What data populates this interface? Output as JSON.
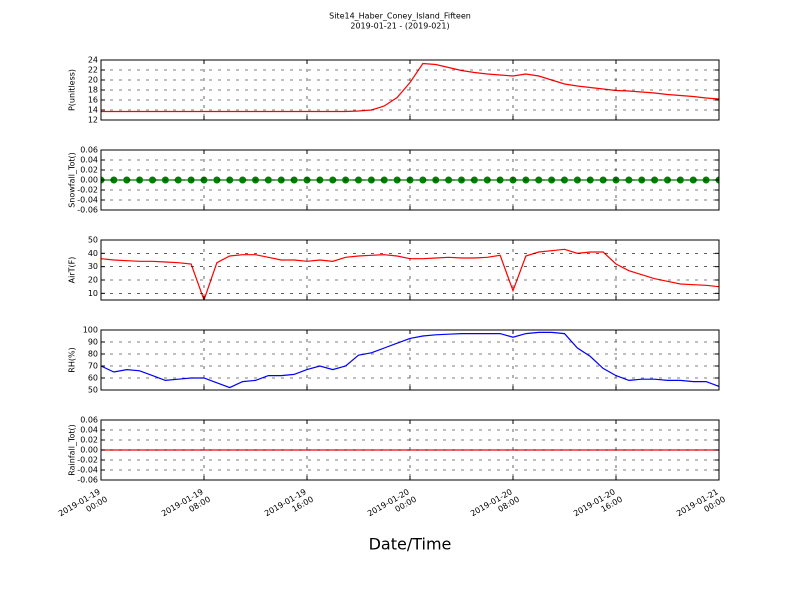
{
  "title": "Site14_Haber_Coney_Island_Fifteen",
  "subtitle": "2019-01-21 - (2019-021)",
  "xlabel": "Date/Time",
  "chart_data": [
    {
      "type": "line",
      "ylabel": "P(unitless)",
      "marker": false,
      "x": [
        "2019-01-19 00:00",
        "2019-01-19 01:00",
        "2019-01-19 02:00",
        "2019-01-19 03:00",
        "2019-01-19 04:00",
        "2019-01-19 05:00",
        "2019-01-19 06:00",
        "2019-01-19 07:00",
        "2019-01-19 08:00",
        "2019-01-19 09:00",
        "2019-01-19 10:00",
        "2019-01-19 11:00",
        "2019-01-19 12:00",
        "2019-01-19 13:00",
        "2019-01-19 14:00",
        "2019-01-19 15:00",
        "2019-01-19 16:00",
        "2019-01-19 17:00",
        "2019-01-19 18:00",
        "2019-01-19 19:00",
        "2019-01-19 20:00",
        "2019-01-19 21:00",
        "2019-01-19 22:00",
        "2019-01-19 23:00",
        "2019-01-20 00:00",
        "2019-01-20 01:00",
        "2019-01-20 02:00",
        "2019-01-20 03:00",
        "2019-01-20 04:00",
        "2019-01-20 05:00",
        "2019-01-20 06:00",
        "2019-01-20 07:00",
        "2019-01-20 08:00",
        "2019-01-20 09:00",
        "2019-01-20 10:00",
        "2019-01-20 11:00",
        "2019-01-20 12:00",
        "2019-01-20 13:00",
        "2019-01-20 14:00",
        "2019-01-20 15:00",
        "2019-01-20 16:00",
        "2019-01-20 17:00",
        "2019-01-20 18:00",
        "2019-01-20 19:00",
        "2019-01-20 20:00",
        "2019-01-20 21:00",
        "2019-01-20 22:00",
        "2019-01-20 23:00",
        "2019-01-21 00:00"
      ],
      "series": [
        {
          "color": "#ff0000",
          "values": [
            13.7,
            13.7,
            13.7,
            13.7,
            13.7,
            13.7,
            13.7,
            13.7,
            13.7,
            13.7,
            13.7,
            13.7,
            13.7,
            13.7,
            13.7,
            13.7,
            13.7,
            13.7,
            13.7,
            13.7,
            13.8,
            14.0,
            14.8,
            16.5,
            19.5,
            23.3,
            23.1,
            22.5,
            21.9,
            21.5,
            21.2,
            21.0,
            20.8,
            21.2,
            20.8,
            20.0,
            19.2,
            18.8,
            18.5,
            18.2,
            17.9,
            17.8,
            17.6,
            17.4,
            17.1,
            16.9,
            16.7,
            16.4,
            16.2
          ]
        }
      ],
      "xlim": [
        "2019-01-19 00:00",
        "2019-01-21 00:00"
      ],
      "xticks": [
        "2019-01-19 00:00",
        "2019-01-19 08:00",
        "2019-01-19 16:00",
        "2019-01-20 00:00",
        "2019-01-20 08:00",
        "2019-01-20 16:00",
        "2019-01-21 00:00"
      ],
      "ylim": [
        12,
        24
      ],
      "yticks": [
        12,
        14,
        16,
        18,
        20,
        22,
        24
      ],
      "grid": true
    },
    {
      "type": "line",
      "ylabel": "Snowfall_Tot()",
      "marker": true,
      "x": [
        "2019-01-19 00:00",
        "2019-01-19 01:00",
        "2019-01-19 02:00",
        "2019-01-19 03:00",
        "2019-01-19 04:00",
        "2019-01-19 05:00",
        "2019-01-19 06:00",
        "2019-01-19 07:00",
        "2019-01-19 08:00",
        "2019-01-19 09:00",
        "2019-01-19 10:00",
        "2019-01-19 11:00",
        "2019-01-19 12:00",
        "2019-01-19 13:00",
        "2019-01-19 14:00",
        "2019-01-19 15:00",
        "2019-01-19 16:00",
        "2019-01-19 17:00",
        "2019-01-19 18:00",
        "2019-01-19 19:00",
        "2019-01-19 20:00",
        "2019-01-19 21:00",
        "2019-01-19 22:00",
        "2019-01-19 23:00",
        "2019-01-20 00:00",
        "2019-01-20 01:00",
        "2019-01-20 02:00",
        "2019-01-20 03:00",
        "2019-01-20 04:00",
        "2019-01-20 05:00",
        "2019-01-20 06:00",
        "2019-01-20 07:00",
        "2019-01-20 08:00",
        "2019-01-20 09:00",
        "2019-01-20 10:00",
        "2019-01-20 11:00",
        "2019-01-20 12:00",
        "2019-01-20 13:00",
        "2019-01-20 14:00",
        "2019-01-20 15:00",
        "2019-01-20 16:00",
        "2019-01-20 17:00",
        "2019-01-20 18:00",
        "2019-01-20 19:00",
        "2019-01-20 20:00",
        "2019-01-20 21:00",
        "2019-01-20 22:00",
        "2019-01-20 23:00",
        "2019-01-21 00:00"
      ],
      "series": [
        {
          "color": "#008000",
          "values": [
            0,
            0,
            0,
            0,
            0,
            0,
            0,
            0,
            0,
            0,
            0,
            0,
            0,
            0,
            0,
            0,
            0,
            0,
            0,
            0,
            0,
            0,
            0,
            0,
            0,
            0,
            0,
            0,
            0,
            0,
            0,
            0,
            0,
            0,
            0,
            0,
            0,
            0,
            0,
            0,
            0,
            0,
            0,
            0,
            0,
            0,
            0,
            0,
            0
          ]
        }
      ],
      "xlim": [
        "2019-01-19 00:00",
        "2019-01-21 00:00"
      ],
      "xticks": [
        "2019-01-19 00:00",
        "2019-01-19 08:00",
        "2019-01-19 16:00",
        "2019-01-20 00:00",
        "2019-01-20 08:00",
        "2019-01-20 16:00",
        "2019-01-21 00:00"
      ],
      "ylim": [
        -0.06,
        0.06
      ],
      "yticks": [
        -0.06,
        -0.04,
        -0.02,
        {
          "value": 0,
          "label": "0.00"
        },
        0.02,
        0.04,
        0.06
      ],
      "grid": true
    },
    {
      "type": "line",
      "ylabel": "AirT(F)",
      "marker": false,
      "x": [
        "2019-01-19 00:00",
        "2019-01-19 01:00",
        "2019-01-19 02:00",
        "2019-01-19 03:00",
        "2019-01-19 04:00",
        "2019-01-19 05:00",
        "2019-01-19 06:00",
        "2019-01-19 07:00",
        "2019-01-19 08:00",
        "2019-01-19 09:00",
        "2019-01-19 10:00",
        "2019-01-19 11:00",
        "2019-01-19 12:00",
        "2019-01-19 13:00",
        "2019-01-19 14:00",
        "2019-01-19 15:00",
        "2019-01-19 16:00",
        "2019-01-19 17:00",
        "2019-01-19 18:00",
        "2019-01-19 19:00",
        "2019-01-19 20:00",
        "2019-01-19 21:00",
        "2019-01-19 22:00",
        "2019-01-19 23:00",
        "2019-01-20 00:00",
        "2019-01-20 01:00",
        "2019-01-20 02:00",
        "2019-01-20 03:00",
        "2019-01-20 04:00",
        "2019-01-20 05:00",
        "2019-01-20 06:00",
        "2019-01-20 07:00",
        "2019-01-20 08:00",
        "2019-01-20 09:00",
        "2019-01-20 10:00",
        "2019-01-20 11:00",
        "2019-01-20 12:00",
        "2019-01-20 13:00",
        "2019-01-20 14:00",
        "2019-01-20 15:00",
        "2019-01-20 16:00",
        "2019-01-20 17:00",
        "2019-01-20 18:00",
        "2019-01-20 19:00",
        "2019-01-20 20:00",
        "2019-01-20 21:00",
        "2019-01-20 22:00",
        "2019-01-20 23:00",
        "2019-01-21 00:00"
      ],
      "series": [
        {
          "color": "#ff0000",
          "values": [
            36,
            35,
            34.5,
            34,
            34,
            33.5,
            33,
            32,
            5,
            33,
            38,
            39,
            39,
            37,
            35,
            35,
            34,
            35,
            34,
            37,
            38,
            38.5,
            39,
            38,
            36,
            36,
            36.5,
            37,
            36.5,
            36.5,
            37,
            38.5,
            12,
            38,
            41,
            42,
            43,
            40,
            41,
            41,
            32,
            27,
            24,
            21,
            19,
            17,
            16.5,
            16,
            15
          ]
        }
      ],
      "xlim": [
        "2019-01-19 00:00",
        "2019-01-21 00:00"
      ],
      "xticks": [
        "2019-01-19 00:00",
        "2019-01-19 08:00",
        "2019-01-19 16:00",
        "2019-01-20 00:00",
        "2019-01-20 08:00",
        "2019-01-20 16:00",
        "2019-01-21 00:00"
      ],
      "ylim": [
        5,
        50
      ],
      "yticks": [
        10,
        20,
        30,
        40,
        50
      ],
      "grid": true
    },
    {
      "type": "line",
      "ylabel": "RH(%)",
      "marker": false,
      "x": [
        "2019-01-19 00:00",
        "2019-01-19 01:00",
        "2019-01-19 02:00",
        "2019-01-19 03:00",
        "2019-01-19 04:00",
        "2019-01-19 05:00",
        "2019-01-19 06:00",
        "2019-01-19 07:00",
        "2019-01-19 08:00",
        "2019-01-19 09:00",
        "2019-01-19 10:00",
        "2019-01-19 11:00",
        "2019-01-19 12:00",
        "2019-01-19 13:00",
        "2019-01-19 14:00",
        "2019-01-19 15:00",
        "2019-01-19 16:00",
        "2019-01-19 17:00",
        "2019-01-19 18:00",
        "2019-01-19 19:00",
        "2019-01-19 20:00",
        "2019-01-19 21:00",
        "2019-01-19 22:00",
        "2019-01-19 23:00",
        "2019-01-20 00:00",
        "2019-01-20 01:00",
        "2019-01-20 02:00",
        "2019-01-20 03:00",
        "2019-01-20 04:00",
        "2019-01-20 05:00",
        "2019-01-20 06:00",
        "2019-01-20 07:00",
        "2019-01-20 08:00",
        "2019-01-20 09:00",
        "2019-01-20 10:00",
        "2019-01-20 11:00",
        "2019-01-20 12:00",
        "2019-01-20 13:00",
        "2019-01-20 14:00",
        "2019-01-20 15:00",
        "2019-01-20 16:00",
        "2019-01-20 17:00",
        "2019-01-20 18:00",
        "2019-01-20 19:00",
        "2019-01-20 20:00",
        "2019-01-20 21:00",
        "2019-01-20 22:00",
        "2019-01-20 23:00",
        "2019-01-21 00:00"
      ],
      "series": [
        {
          "color": "#0000ff",
          "values": [
            70,
            65,
            67,
            66,
            62,
            58,
            59,
            60,
            60,
            56,
            52,
            57,
            58,
            62,
            62,
            63,
            67,
            70,
            67,
            70,
            79,
            81,
            85,
            89,
            93,
            95,
            96,
            96.5,
            97,
            97,
            97,
            97,
            94,
            97,
            98,
            98,
            97,
            85,
            78,
            68,
            62,
            58,
            59,
            59,
            58,
            58,
            57,
            57,
            53
          ]
        }
      ],
      "xlim": [
        "2019-01-19 00:00",
        "2019-01-21 00:00"
      ],
      "xticks": [
        "2019-01-19 00:00",
        "2019-01-19 08:00",
        "2019-01-19 16:00",
        "2019-01-20 00:00",
        "2019-01-20 08:00",
        "2019-01-20 16:00",
        "2019-01-21 00:00"
      ],
      "ylim": [
        50,
        100
      ],
      "yticks": [
        50,
        60,
        70,
        80,
        90,
        100
      ],
      "grid": true
    },
    {
      "type": "line",
      "ylabel": "Rainfall_Tot()",
      "marker": false,
      "show_xtick_labels": true,
      "x": [
        "2019-01-19 00:00",
        "2019-01-19 01:00",
        "2019-01-19 02:00",
        "2019-01-19 03:00",
        "2019-01-19 04:00",
        "2019-01-19 05:00",
        "2019-01-19 06:00",
        "2019-01-19 07:00",
        "2019-01-19 08:00",
        "2019-01-19 09:00",
        "2019-01-19 10:00",
        "2019-01-19 11:00",
        "2019-01-19 12:00",
        "2019-01-19 13:00",
        "2019-01-19 14:00",
        "2019-01-19 15:00",
        "2019-01-19 16:00",
        "2019-01-19 17:00",
        "2019-01-19 18:00",
        "2019-01-19 19:00",
        "2019-01-19 20:00",
        "2019-01-19 21:00",
        "2019-01-19 22:00",
        "2019-01-19 23:00",
        "2019-01-20 00:00",
        "2019-01-20 01:00",
        "2019-01-20 02:00",
        "2019-01-20 03:00",
        "2019-01-20 04:00",
        "2019-01-20 05:00",
        "2019-01-20 06:00",
        "2019-01-20 07:00",
        "2019-01-20 08:00",
        "2019-01-20 09:00",
        "2019-01-20 10:00",
        "2019-01-20 11:00",
        "2019-01-20 12:00",
        "2019-01-20 13:00",
        "2019-01-20 14:00",
        "2019-01-20 15:00",
        "2019-01-20 16:00",
        "2019-01-20 17:00",
        "2019-01-20 18:00",
        "2019-01-20 19:00",
        "2019-01-20 20:00",
        "2019-01-20 21:00",
        "2019-01-20 22:00",
        "2019-01-20 23:00",
        "2019-01-21 00:00"
      ],
      "series": [
        {
          "color": "#ff0000",
          "values": [
            0,
            0,
            0,
            0,
            0,
            0,
            0,
            0,
            0,
            0,
            0,
            0,
            0,
            0,
            0,
            0,
            0,
            0,
            0,
            0,
            0,
            0,
            0,
            0,
            0,
            0,
            0,
            0,
            0,
            0,
            0,
            0,
            0,
            0,
            0,
            0,
            0,
            0,
            0,
            0,
            0,
            0,
            0,
            0,
            0,
            0,
            0,
            0,
            0
          ]
        }
      ],
      "xlim": [
        "2019-01-19 00:00",
        "2019-01-21 00:00"
      ],
      "xticks": [
        "2019-01-19 00:00",
        "2019-01-19 08:00",
        "2019-01-19 16:00",
        "2019-01-20 00:00",
        "2019-01-20 08:00",
        "2019-01-20 16:00",
        "2019-01-21 00:00"
      ],
      "ylim": [
        -0.06,
        0.06
      ],
      "yticks": [
        -0.06,
        -0.04,
        -0.02,
        {
          "value": 0,
          "label": "0.00"
        },
        0.02,
        0.04,
        0.06
      ],
      "grid": true
    }
  ]
}
